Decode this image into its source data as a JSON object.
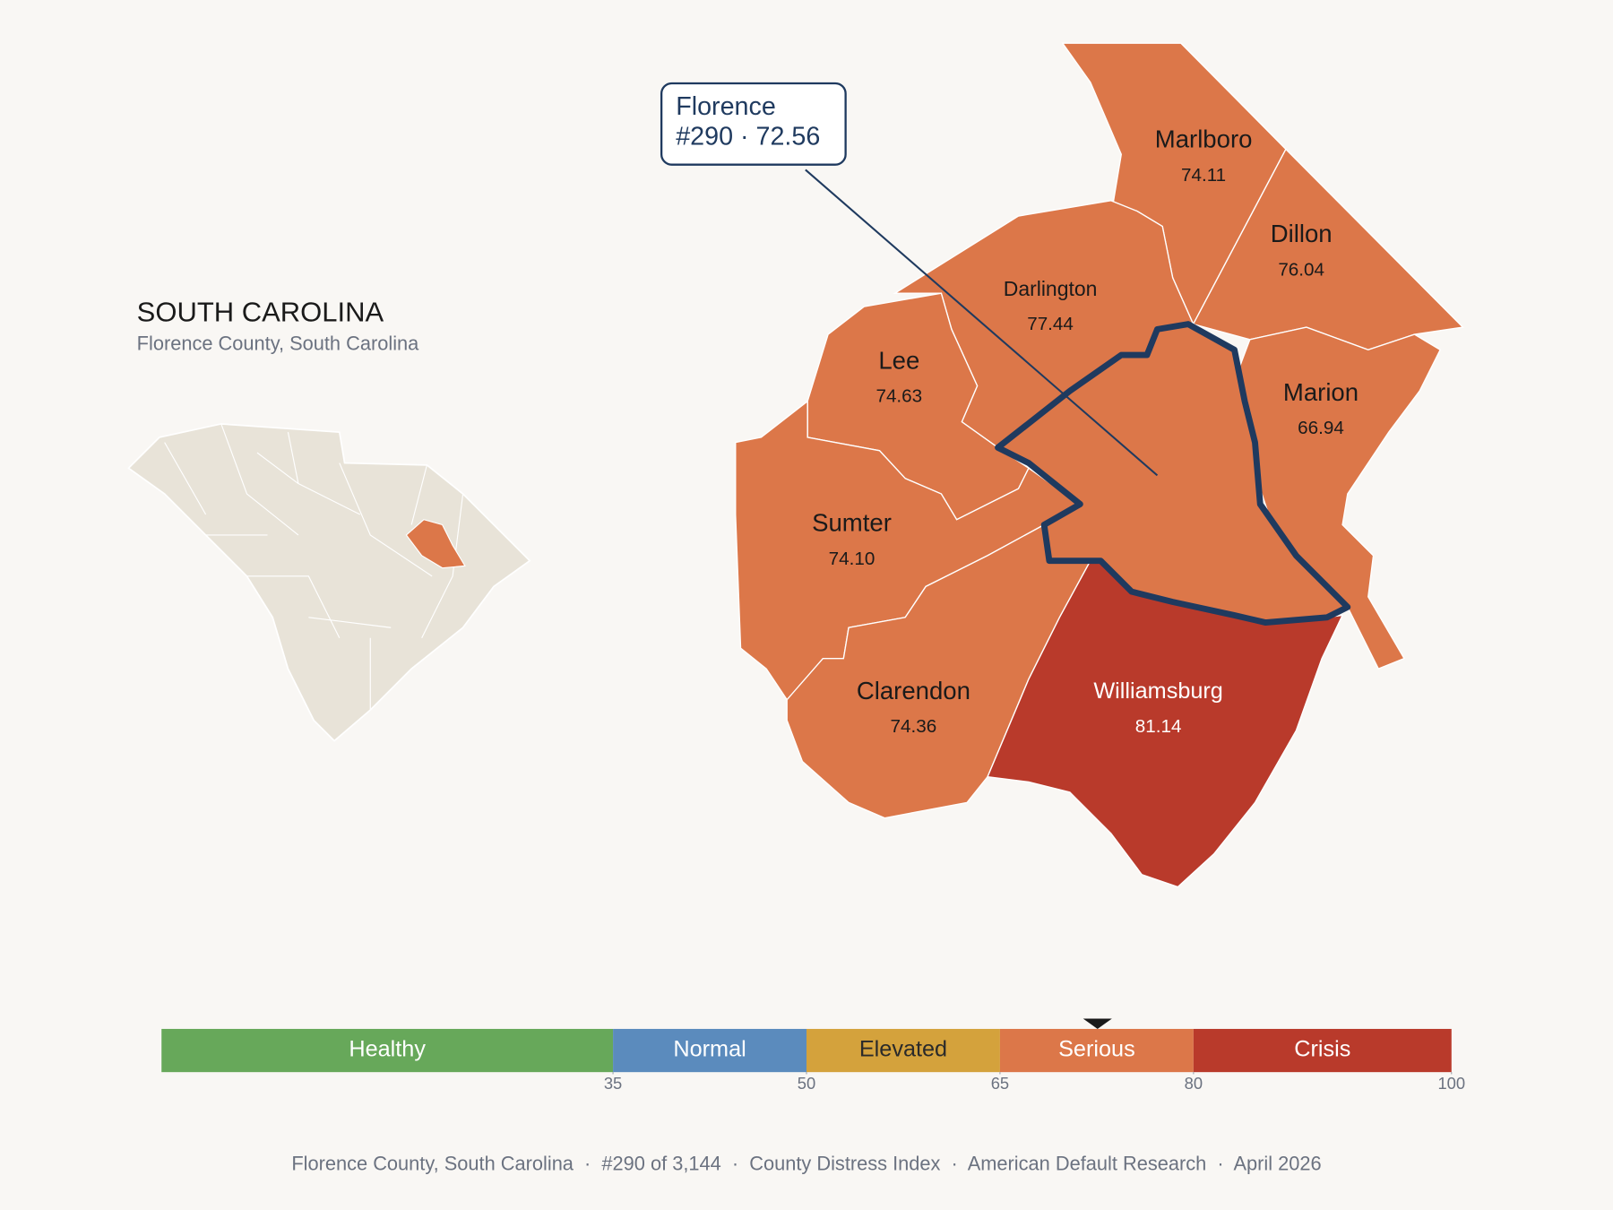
{
  "header": {
    "title": "SOUTH CAROLINA",
    "subtitle": "Florence County, South Carolina"
  },
  "callout": {
    "name": "Florence",
    "detail": "#290 · 72.56"
  },
  "map": {
    "border_color": "#1f3a5f",
    "counties": [
      {
        "name": "Marlboro",
        "value": "74.11",
        "color": "#dc7749"
      },
      {
        "name": "Dillon",
        "value": "76.04",
        "color": "#dc7749"
      },
      {
        "name": "Marion",
        "value": "66.94",
        "color": "#dc7749"
      },
      {
        "name": "Darlington",
        "value": "77.44",
        "color": "#dc7749"
      },
      {
        "name": "Lee",
        "value": "74.63",
        "color": "#dc7749"
      },
      {
        "name": "Sumter",
        "value": "74.10",
        "color": "#dc7749"
      },
      {
        "name": "Clarendon",
        "value": "74.36",
        "color": "#dc7749"
      },
      {
        "name": "Williamsburg",
        "value": "81.14",
        "color": "#b93a2b"
      }
    ],
    "focus_color": "#dc7749"
  },
  "legend": {
    "range": [
      0,
      100
    ],
    "ticks": [
      35,
      50,
      65,
      80,
      100
    ],
    "marker": 72.56,
    "bands": [
      {
        "label": "Healthy",
        "color": "#67a85a"
      },
      {
        "label": "Normal",
        "color": "#5b8bbd"
      },
      {
        "label": "Elevated",
        "color": "#d4a23c"
      },
      {
        "label": "Serious",
        "color": "#dc7749"
      },
      {
        "label": "Crisis",
        "color": "#b93a2b"
      }
    ]
  },
  "footer": "Florence County, South Carolina  ·  #290 of 3,144  ·  County Distress Index  ·  American Default Research  ·  April 2026"
}
